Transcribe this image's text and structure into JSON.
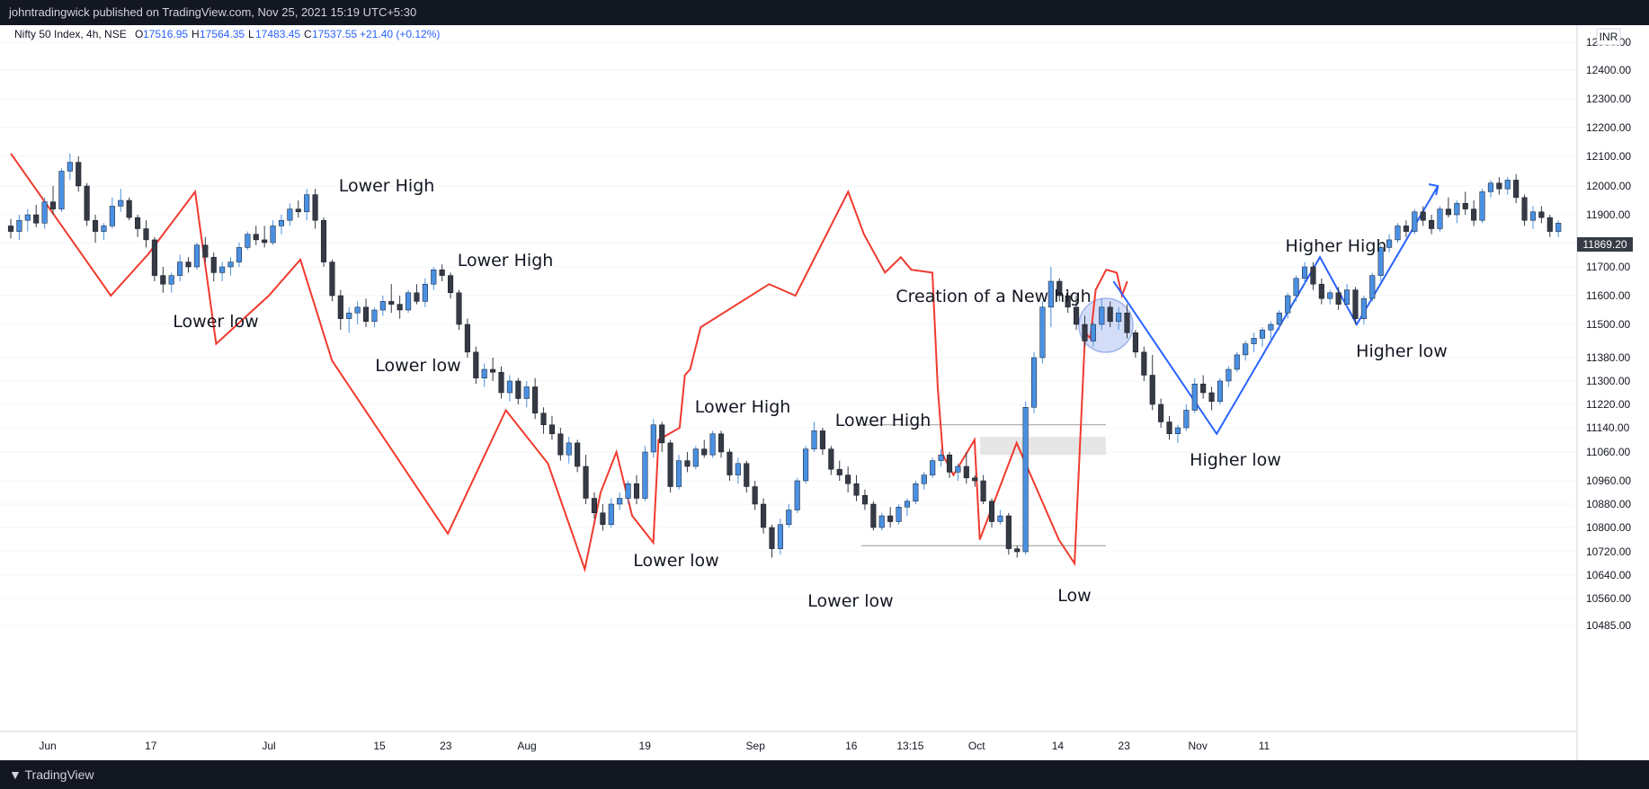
{
  "header": {
    "publisher": "johntradingwick published on TradingView.com, Nov 25, 2021 15:19 UTC+5:30"
  },
  "legend": {
    "symbol": "Nifty 50 Index, 4h, NSE",
    "open_label": "O",
    "open": "17516.95",
    "high_label": "H",
    "high": "17564.35",
    "low_label": "L",
    "low": "17483.45",
    "close_label": "C",
    "close": "17537.55",
    "change": "+21.40 (+0.12%)"
  },
  "currency": "INR",
  "last_price": "11869.20",
  "footer": {
    "brand": "TradingView"
  },
  "colors": {
    "up": "#4a90e2",
    "down": "#363a45",
    "bear_path": "#f03a2e",
    "bull_path": "#2962ff",
    "circle": "#9fb4ee"
  },
  "chart_data": {
    "type": "candlestick",
    "y_ticks": [
      "12500.00",
      "12400.00",
      "12300.00",
      "12200.00",
      "12100.00",
      "12000.00",
      "11900.00",
      "11800.00",
      "11700.00",
      "11600.00",
      "11500.00",
      "11380.00",
      "11300.00",
      "11220.00",
      "11140.00",
      "11060.00",
      "10960.00",
      "10880.00",
      "10800.00",
      "10720.00",
      "10640.00",
      "10560.00",
      "10485.00"
    ],
    "x_ticks": [
      {
        "label": "Jun",
        "i": 5
      },
      {
        "label": "17",
        "i": 19
      },
      {
        "label": "Jul",
        "i": 35
      },
      {
        "label": "15",
        "i": 50
      },
      {
        "label": "23",
        "i": 59
      },
      {
        "label": "Aug",
        "i": 70
      },
      {
        "label": "19",
        "i": 86
      },
      {
        "label": "Sep",
        "i": 101
      },
      {
        "label": "16",
        "i": 114
      },
      {
        "label": "13:15",
        "i": 122
      },
      {
        "label": "Oct",
        "i": 131
      },
      {
        "label": "14",
        "i": 142
      },
      {
        "label": "23",
        "i": 151
      },
      {
        "label": "Nov",
        "i": 161
      },
      {
        "label": "11",
        "i": 170
      }
    ],
    "ohlc": [
      [
        11860,
        11885,
        11815,
        11840
      ],
      [
        11840,
        11900,
        11810,
        11880
      ],
      [
        11880,
        11920,
        11840,
        11900
      ],
      [
        11900,
        11935,
        11855,
        11870
      ],
      [
        11870,
        11960,
        11850,
        11945
      ],
      [
        11945,
        12000,
        11900,
        11920
      ],
      [
        11920,
        12060,
        11910,
        12050
      ],
      [
        12050,
        12110,
        12020,
        12080
      ],
      [
        12080,
        12100,
        11980,
        12000
      ],
      [
        12000,
        12010,
        11860,
        11880
      ],
      [
        11880,
        11900,
        11800,
        11840
      ],
      [
        11840,
        11870,
        11810,
        11860
      ],
      [
        11860,
        11960,
        11850,
        11930
      ],
      [
        11930,
        11990,
        11910,
        11950
      ],
      [
        11950,
        11960,
        11880,
        11890
      ],
      [
        11890,
        11900,
        11820,
        11850
      ],
      [
        11850,
        11880,
        11780,
        11810
      ],
      [
        11810,
        11820,
        11650,
        11670
      ],
      [
        11670,
        11700,
        11610,
        11640
      ],
      [
        11640,
        11680,
        11610,
        11670
      ],
      [
        11670,
        11750,
        11650,
        11720
      ],
      [
        11720,
        11740,
        11680,
        11700
      ],
      [
        11700,
        11800,
        11690,
        11790
      ],
      [
        11790,
        11820,
        11720,
        11740
      ],
      [
        11740,
        11760,
        11650,
        11680
      ],
      [
        11680,
        11720,
        11650,
        11700
      ],
      [
        11700,
        11740,
        11670,
        11720
      ],
      [
        11720,
        11800,
        11700,
        11780
      ],
      [
        11780,
        11840,
        11770,
        11830
      ],
      [
        11830,
        11860,
        11790,
        11810
      ],
      [
        11810,
        11860,
        11780,
        11800
      ],
      [
        11800,
        11880,
        11790,
        11860
      ],
      [
        11860,
        11900,
        11830,
        11880
      ],
      [
        11880,
        11940,
        11860,
        11920
      ],
      [
        11920,
        11950,
        11890,
        11910
      ],
      [
        11910,
        11990,
        11880,
        11970
      ],
      [
        11970,
        11990,
        11850,
        11880
      ],
      [
        11880,
        11890,
        11700,
        11720
      ],
      [
        11720,
        11730,
        11580,
        11600
      ],
      [
        11600,
        11620,
        11480,
        11520
      ],
      [
        11520,
        11560,
        11470,
        11540
      ],
      [
        11540,
        11580,
        11500,
        11560
      ],
      [
        11560,
        11590,
        11490,
        11510
      ],
      [
        11510,
        11560,
        11490,
        11550
      ],
      [
        11550,
        11600,
        11530,
        11580
      ],
      [
        11580,
        11640,
        11540,
        11570
      ],
      [
        11570,
        11600,
        11520,
        11550
      ],
      [
        11550,
        11620,
        11540,
        11610
      ],
      [
        11610,
        11640,
        11570,
        11580
      ],
      [
        11580,
        11660,
        11560,
        11640
      ],
      [
        11640,
        11700,
        11620,
        11690
      ],
      [
        11690,
        11710,
        11650,
        11670
      ],
      [
        11670,
        11680,
        11590,
        11610
      ],
      [
        11610,
        11620,
        11480,
        11500
      ],
      [
        11500,
        11520,
        11380,
        11400
      ],
      [
        11400,
        11420,
        11290,
        11310
      ],
      [
        11310,
        11360,
        11280,
        11340
      ],
      [
        11340,
        11380,
        11300,
        11330
      ],
      [
        11330,
        11350,
        11240,
        11260
      ],
      [
        11260,
        11320,
        11230,
        11300
      ],
      [
        11300,
        11310,
        11220,
        11240
      ],
      [
        11240,
        11300,
        11210,
        11280
      ],
      [
        11280,
        11310,
        11170,
        11190
      ],
      [
        11190,
        11210,
        11120,
        11150
      ],
      [
        11150,
        11180,
        11100,
        11120
      ],
      [
        11120,
        11140,
        11030,
        11050
      ],
      [
        11050,
        11110,
        11020,
        11090
      ],
      [
        11090,
        11100,
        10990,
        11010
      ],
      [
        11010,
        11050,
        10880,
        10900
      ],
      [
        10900,
        10920,
        10830,
        10850
      ],
      [
        10850,
        10880,
        10790,
        10810
      ],
      [
        10810,
        10900,
        10800,
        10880
      ],
      [
        10880,
        10920,
        10860,
        10900
      ],
      [
        10900,
        10960,
        10880,
        10950
      ],
      [
        10950,
        10980,
        10880,
        10900
      ],
      [
        10900,
        11080,
        10890,
        11060
      ],
      [
        11060,
        11170,
        11040,
        11150
      ],
      [
        11150,
        11160,
        11060,
        11090
      ],
      [
        11090,
        11100,
        10920,
        10940
      ],
      [
        10940,
        11050,
        10930,
        11030
      ],
      [
        11030,
        11060,
        10990,
        11010
      ],
      [
        11010,
        11080,
        11000,
        11070
      ],
      [
        11070,
        11100,
        11040,
        11050
      ],
      [
        11050,
        11130,
        11040,
        11120
      ],
      [
        11120,
        11130,
        11040,
        11060
      ],
      [
        11060,
        11070,
        10960,
        10980
      ],
      [
        10980,
        11040,
        10950,
        11020
      ],
      [
        11020,
        11030,
        10920,
        10940
      ],
      [
        10940,
        10960,
        10860,
        10880
      ],
      [
        10880,
        10900,
        10780,
        10800
      ],
      [
        10800,
        10810,
        10700,
        10730
      ],
      [
        10730,
        10830,
        10710,
        10810
      ],
      [
        10810,
        10880,
        10800,
        10860
      ],
      [
        10860,
        10970,
        10850,
        10960
      ],
      [
        10960,
        11080,
        10950,
        11070
      ],
      [
        11070,
        11160,
        11060,
        11130
      ],
      [
        11130,
        11140,
        11050,
        11070
      ],
      [
        11070,
        11080,
        10980,
        11000
      ],
      [
        11000,
        11030,
        10960,
        10980
      ],
      [
        10980,
        11010,
        10920,
        10950
      ],
      [
        10950,
        10980,
        10890,
        10910
      ],
      [
        10910,
        10930,
        10860,
        10880
      ],
      [
        10880,
        10890,
        10790,
        10800
      ],
      [
        10800,
        10850,
        10790,
        10840
      ],
      [
        10840,
        10870,
        10800,
        10820
      ],
      [
        10820,
        10880,
        10810,
        10870
      ],
      [
        10870,
        10900,
        10840,
        10890
      ],
      [
        10890,
        10960,
        10880,
        10950
      ],
      [
        10950,
        10990,
        10930,
        10980
      ],
      [
        10980,
        11040,
        10970,
        11030
      ],
      [
        11030,
        11070,
        11010,
        11050
      ],
      [
        11050,
        11060,
        10970,
        10990
      ],
      [
        10990,
        11020,
        10960,
        11010
      ],
      [
        11010,
        11060,
        10950,
        10970
      ],
      [
        10970,
        10980,
        10940,
        10960
      ],
      [
        10960,
        10980,
        10880,
        10890
      ],
      [
        10890,
        10900,
        10800,
        10820
      ],
      [
        10820,
        10860,
        10810,
        10840
      ],
      [
        10840,
        10850,
        10710,
        10730
      ],
      [
        10730,
        10740,
        10700,
        10720
      ],
      [
        10720,
        11230,
        10710,
        11210
      ],
      [
        11210,
        11400,
        11190,
        11380
      ],
      [
        11380,
        11580,
        11360,
        11560
      ],
      [
        11560,
        11700,
        11490,
        11650
      ],
      [
        11650,
        11660,
        11580,
        11600
      ],
      [
        11600,
        11620,
        11540,
        11560
      ],
      [
        11560,
        11600,
        11480,
        11500
      ],
      [
        11500,
        11530,
        11420,
        11440
      ],
      [
        11440,
        11510,
        11420,
        11500
      ],
      [
        11500,
        11590,
        11480,
        11560
      ],
      [
        11560,
        11580,
        11490,
        11510
      ],
      [
        11510,
        11560,
        11480,
        11540
      ],
      [
        11540,
        11570,
        11450,
        11470
      ],
      [
        11470,
        11480,
        11380,
        11400
      ],
      [
        11400,
        11420,
        11300,
        11320
      ],
      [
        11320,
        11390,
        11200,
        11220
      ],
      [
        11220,
        11240,
        11140,
        11160
      ],
      [
        11160,
        11180,
        11100,
        11120
      ],
      [
        11120,
        11150,
        11090,
        11140
      ],
      [
        11140,
        11220,
        11130,
        11200
      ],
      [
        11200,
        11310,
        11190,
        11290
      ],
      [
        11290,
        11320,
        11240,
        11260
      ],
      [
        11260,
        11280,
        11200,
        11230
      ],
      [
        11230,
        11310,
        11220,
        11300
      ],
      [
        11300,
        11350,
        11280,
        11340
      ],
      [
        11340,
        11400,
        11330,
        11390
      ],
      [
        11390,
        11440,
        11370,
        11430
      ],
      [
        11430,
        11470,
        11400,
        11450
      ],
      [
        11450,
        11490,
        11420,
        11480
      ],
      [
        11480,
        11510,
        11440,
        11500
      ],
      [
        11500,
        11550,
        11480,
        11540
      ],
      [
        11540,
        11610,
        11520,
        11600
      ],
      [
        11600,
        11670,
        11580,
        11660
      ],
      [
        11660,
        11720,
        11640,
        11700
      ],
      [
        11700,
        11720,
        11620,
        11640
      ],
      [
        11640,
        11660,
        11570,
        11590
      ],
      [
        11590,
        11620,
        11570,
        11610
      ],
      [
        11610,
        11630,
        11550,
        11570
      ],
      [
        11570,
        11640,
        11560,
        11620
      ],
      [
        11620,
        11630,
        11500,
        11520
      ],
      [
        11520,
        11600,
        11500,
        11590
      ],
      [
        11590,
        11680,
        11580,
        11670
      ],
      [
        11670,
        11790,
        11650,
        11780
      ],
      [
        11780,
        11830,
        11760,
        11810
      ],
      [
        11810,
        11870,
        11800,
        11860
      ],
      [
        11860,
        11880,
        11820,
        11840
      ],
      [
        11840,
        11920,
        11830,
        11910
      ],
      [
        11910,
        11930,
        11860,
        11880
      ],
      [
        11880,
        11900,
        11830,
        11850
      ],
      [
        11850,
        11930,
        11840,
        11920
      ],
      [
        11920,
        11960,
        11890,
        11900
      ],
      [
        11900,
        11950,
        11870,
        11940
      ],
      [
        11940,
        11980,
        11900,
        11920
      ],
      [
        11920,
        11950,
        11860,
        11880
      ],
      [
        11880,
        11990,
        11870,
        11980
      ],
      [
        11980,
        12020,
        11960,
        12010
      ],
      [
        12010,
        12030,
        11970,
        11990
      ],
      [
        11990,
        12030,
        11970,
        12020
      ],
      [
        12020,
        12040,
        11940,
        11960
      ],
      [
        11960,
        11970,
        11860,
        11880
      ],
      [
        11880,
        11930,
        11850,
        11910
      ],
      [
        11910,
        11930,
        11870,
        11890
      ],
      [
        11890,
        11900,
        11820,
        11840
      ],
      [
        11840,
        11880,
        11820,
        11870
      ]
    ],
    "overlays": {
      "bear_path": [
        [
          0,
          12110
        ],
        [
          19,
          11600
        ],
        [
          26,
          11750
        ],
        [
          35,
          11980
        ],
        [
          39,
          11430
        ],
        [
          49,
          11600
        ],
        [
          55,
          11730
        ],
        [
          61,
          11370
        ],
        [
          83,
          10780
        ],
        [
          94,
          11200
        ],
        [
          102,
          11020
        ],
        [
          109,
          10660
        ],
        [
          112,
          10920
        ],
        [
          115,
          11060
        ],
        [
          118,
          10840
        ],
        [
          122,
          10750
        ],
        [
          123,
          11100
        ],
        [
          127,
          11140
        ],
        [
          128,
          11320
        ],
        [
          129,
          11340
        ],
        [
          131,
          11490
        ],
        [
          144,
          11640
        ],
        [
          149,
          11600
        ],
        [
          159,
          11980
        ],
        [
          162,
          11830
        ],
        [
          166,
          11680
        ],
        [
          169,
          11740
        ],
        [
          171,
          11690
        ],
        [
          175,
          11680
        ],
        [
          176,
          11280
        ],
        [
          177,
          11050
        ],
        [
          179,
          10980
        ],
        [
          183,
          11100
        ],
        [
          184,
          10760
        ],
        [
          191,
          11090
        ],
        [
          199,
          10760
        ],
        [
          202,
          10680
        ],
        [
          204,
          11470
        ],
        [
          205,
          11450
        ],
        [
          206,
          11620
        ],
        [
          208,
          11690
        ],
        [
          210,
          11680
        ],
        [
          211,
          11600
        ],
        [
          212,
          11650
        ]
      ],
      "bull_path": [
        [
          122,
          11650
        ],
        [
          136,
          11120
        ],
        [
          150,
          11740
        ],
        [
          155,
          11500
        ],
        [
          166,
          12000
        ]
      ]
    },
    "annotations": [
      {
        "text": "Lower low",
        "i": 23,
        "price": 11555
      },
      {
        "text": "Lower High",
        "i": 42,
        "price": 12025
      },
      {
        "text": "Lower low",
        "i": 46,
        "price": 11400
      },
      {
        "text": "Lower High",
        "i": 55,
        "price": 11770
      },
      {
        "text": "Lower low",
        "i": 75,
        "price": 10740
      },
      {
        "text": "Lower High",
        "i": 83,
        "price": 11215
      },
      {
        "text": "Lower low",
        "i": 94,
        "price": 10620
      },
      {
        "text": "Lower High",
        "i": 98,
        "price": 11170
      },
      {
        "text": "Low",
        "i": 120,
        "price": 10630
      },
      {
        "text": "Creation of a New high",
        "i": 110,
        "price": 11655
      },
      {
        "text": "Higher low",
        "i": 138,
        "price": 11070
      },
      {
        "text": "Higher High",
        "i": 149,
        "price": 11780
      },
      {
        "text": "Higher low",
        "i": 156,
        "price": 11460
      }
    ],
    "range_lines": [
      {
        "price": 11150
      },
      {
        "price": 10740
      }
    ],
    "zone": {
      "top": 11110,
      "bottom": 11050
    }
  }
}
